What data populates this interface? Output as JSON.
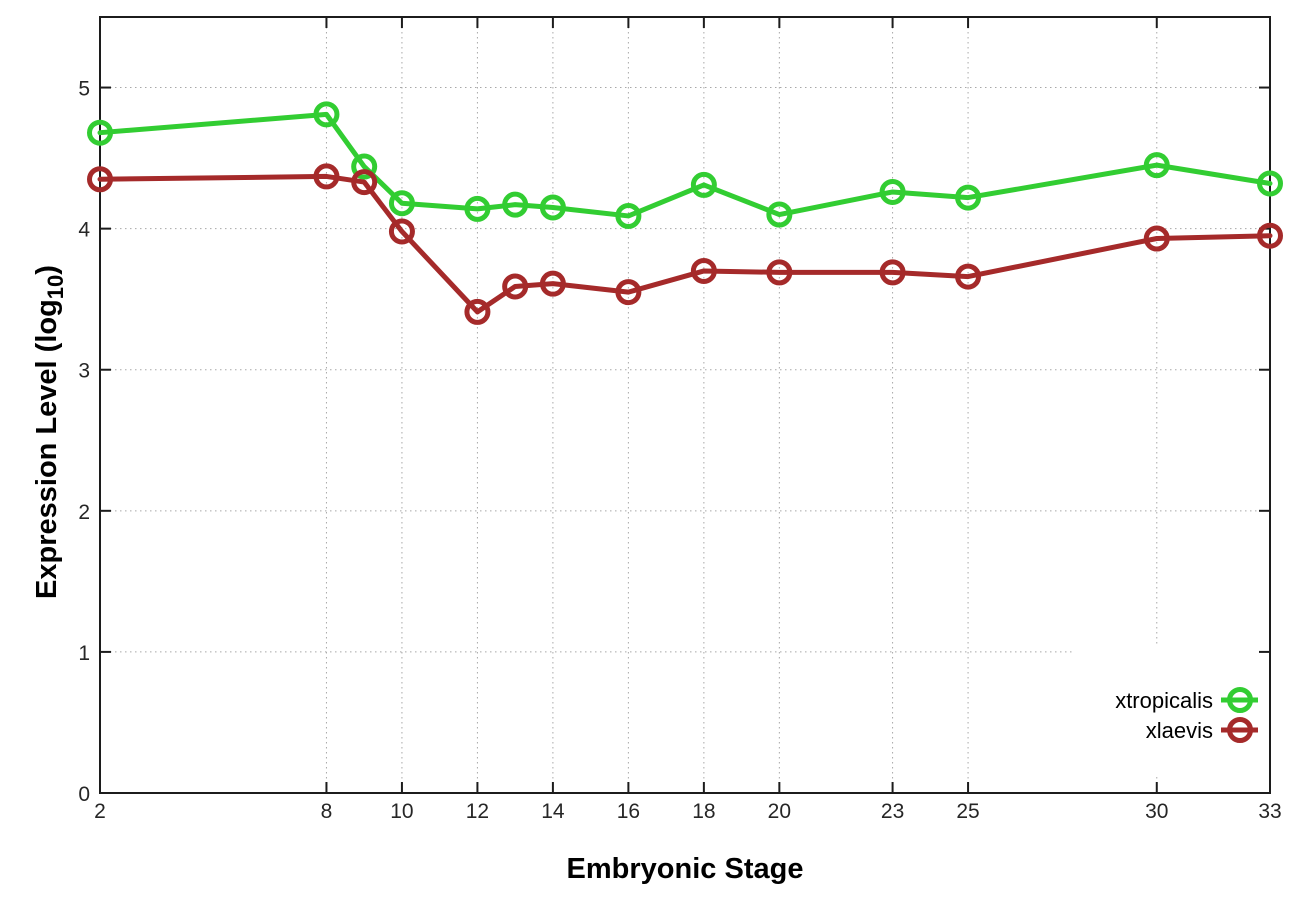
{
  "figure": {
    "background_color": "#ffffff",
    "axis_color": "#1c1c1c",
    "grid_color": "#a8a8a8",
    "text_color": "#262626"
  },
  "chart_data": {
    "type": "line",
    "title": "",
    "xlabel": "Embryonic Stage",
    "ylabel": "Expression Level (log10)",
    "ylabel_parts": {
      "main": "Expression Level (log",
      "sub": "10",
      "suffix": ")"
    },
    "xlim": [
      2,
      33
    ],
    "ylim": [
      0,
      5.5
    ],
    "x_ticks": [
      2,
      8,
      10,
      12,
      14,
      16,
      18,
      20,
      23,
      25,
      30,
      33
    ],
    "y_ticks": [
      0,
      1,
      2,
      3,
      4,
      5
    ],
    "grid": "dotted gridlines at interior x ticks and at y = 1..5",
    "legend_position": "inside bottom-right, opaque key",
    "x": [
      2,
      8,
      9,
      10,
      12,
      13,
      14,
      16,
      18,
      20,
      23,
      25,
      30,
      33
    ],
    "series": [
      {
        "name": "xtropicalis",
        "color": "#32cd32",
        "marker": "open-circle",
        "values": [
          4.68,
          4.81,
          4.44,
          4.18,
          4.14,
          4.17,
          4.15,
          4.09,
          4.31,
          4.1,
          4.26,
          4.22,
          4.45,
          4.32
        ]
      },
      {
        "name": "xlaevis",
        "color": "#a52a2a",
        "marker": "open-circle",
        "values": [
          4.35,
          4.37,
          4.33,
          3.98,
          3.41,
          3.59,
          3.61,
          3.55,
          3.7,
          3.69,
          3.69,
          3.66,
          3.93,
          3.95
        ]
      }
    ]
  }
}
